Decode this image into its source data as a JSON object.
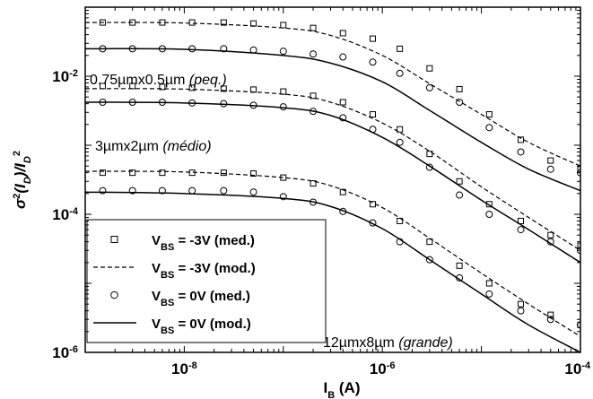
{
  "chart_data": {
    "type": "scatter",
    "xlabel": "I_B (A)",
    "ylabel": "σ²(I_D)/I_D²",
    "xscale": "log",
    "yscale": "log",
    "xlim": [
      1e-09,
      0.0001
    ],
    "ylim": [
      1e-06,
      0.1
    ],
    "x_ticks": [
      {
        "value": 1e-08,
        "base": "10",
        "exp": "-8"
      },
      {
        "value": 1e-06,
        "base": "10",
        "exp": "-6"
      },
      {
        "value": 0.0001,
        "base": "10",
        "exp": "-4"
      }
    ],
    "y_ticks": [
      {
        "value": 1e-06,
        "base": "10",
        "exp": "-6"
      },
      {
        "value": 0.0001,
        "base": "10",
        "exp": "-4"
      },
      {
        "value": 0.01,
        "base": "10",
        "exp": "-2"
      }
    ],
    "grid": false,
    "legend_position": "bottom-left",
    "legend": [
      {
        "marker": "square",
        "style": "marker",
        "label": "V_BS = -3V (med.)"
      },
      {
        "marker": "none",
        "style": "dashed",
        "label": "V_BS = -3V (mod.)"
      },
      {
        "marker": "circle",
        "style": "marker",
        "label": "V_BS = 0V (med.)"
      },
      {
        "marker": "none",
        "style": "solid",
        "label": "V_BS = 0V (mod.)"
      }
    ],
    "annotations": [
      {
        "text": "0.75µmx0.5µm",
        "italic": " (peq.)",
        "group": "small"
      },
      {
        "text": "3µmx2µm",
        "italic": " (médio)",
        "group": "medium"
      },
      {
        "text": "12µmx8µm",
        "italic": " (grande)",
        "group": "large"
      }
    ],
    "series": [
      {
        "group": "small",
        "style": "dashed",
        "x": [
          1e-09,
          1e-08,
          1e-07,
          3e-07,
          1e-06,
          3e-06,
          1e-05,
          3e-05,
          0.0001
        ],
        "y": [
          0.06,
          0.059,
          0.05,
          0.039,
          0.02,
          0.0078,
          0.0028,
          0.0011,
          0.0005
        ]
      },
      {
        "group": "small",
        "style": "solid",
        "x": [
          1e-09,
          1e-08,
          1e-07,
          3e-07,
          1e-06,
          3e-06,
          1e-05,
          3e-05,
          0.0001
        ],
        "y": [
          0.025,
          0.0245,
          0.02,
          0.0155,
          0.0083,
          0.0032,
          0.0011,
          0.00045,
          0.00022
        ]
      },
      {
        "group": "small",
        "style": "square",
        "x": [
          1.5e-09,
          3e-09,
          6e-09,
          1.2e-08,
          2.5e-08,
          5e-08,
          1e-07,
          2e-07,
          4e-07,
          8e-07,
          1.5e-06,
          3e-06,
          6e-06,
          1.2e-05,
          2.5e-05,
          5e-05,
          0.0001
        ],
        "y": [
          0.06,
          0.06,
          0.06,
          0.06,
          0.06,
          0.058,
          0.055,
          0.05,
          0.042,
          0.035,
          0.025,
          0.013,
          0.0065,
          0.0028,
          0.0012,
          0.0006,
          0.00045
        ]
      },
      {
        "group": "small",
        "style": "circle",
        "x": [
          1.5e-09,
          3e-09,
          6e-09,
          1.2e-08,
          2.5e-08,
          5e-08,
          1e-07,
          2e-07,
          4e-07,
          8e-07,
          1.5e-06,
          3e-06,
          6e-06,
          1.2e-05,
          2.5e-05,
          5e-05,
          0.0001
        ],
        "y": [
          0.025,
          0.025,
          0.025,
          0.025,
          0.025,
          0.024,
          0.023,
          0.021,
          0.019,
          0.016,
          0.011,
          0.0068,
          0.0042,
          0.0018,
          0.0008,
          0.00045,
          0.0004
        ]
      },
      {
        "group": "medium",
        "style": "dashed",
        "x": [
          1e-09,
          1e-08,
          1e-07,
          3e-07,
          1e-06,
          3e-06,
          1e-05,
          3e-05,
          0.0001
        ],
        "y": [
          0.0066,
          0.0065,
          0.0055,
          0.0042,
          0.0021,
          0.00082,
          0.00025,
          9e-05,
          3e-05
        ]
      },
      {
        "group": "medium",
        "style": "solid",
        "x": [
          1e-09,
          1e-08,
          1e-07,
          3e-07,
          1e-06,
          3e-06,
          1e-05,
          3e-05,
          0.0001
        ],
        "y": [
          0.0042,
          0.0041,
          0.0035,
          0.0027,
          0.0013,
          0.0005,
          0.00016,
          6e-05,
          2e-05
        ]
      },
      {
        "group": "medium",
        "style": "square",
        "x": [
          1.5e-09,
          3e-09,
          6e-09,
          1.2e-08,
          2.5e-08,
          5e-08,
          1e-07,
          2e-07,
          4e-07,
          8e-07,
          1.5e-06,
          3e-06,
          6e-06,
          1.2e-05,
          2.5e-05,
          5e-05,
          0.0001
        ],
        "y": [
          0.0072,
          0.0072,
          0.007,
          0.0068,
          0.0066,
          0.0064,
          0.006,
          0.0052,
          0.0042,
          0.0028,
          0.0017,
          0.00075,
          0.0003,
          0.00014,
          8e-05,
          5e-05,
          3.5e-05
        ]
      },
      {
        "group": "medium",
        "style": "circle",
        "x": [
          1.5e-09,
          3e-09,
          6e-09,
          1.2e-08,
          2.5e-08,
          5e-08,
          1e-07,
          2e-07,
          4e-07,
          8e-07,
          1.5e-06,
          3e-06,
          6e-06,
          1.2e-05,
          2.5e-05,
          5e-05,
          0.0001
        ],
        "y": [
          0.0042,
          0.0042,
          0.0042,
          0.0041,
          0.004,
          0.0038,
          0.0036,
          0.0031,
          0.0025,
          0.0017,
          0.0011,
          0.00048,
          0.00019,
          0.0001,
          6e-05,
          4e-05,
          3e-05
        ]
      },
      {
        "group": "large",
        "style": "dashed",
        "x": [
          1e-09,
          1e-08,
          1e-07,
          3e-07,
          1e-06,
          3e-06,
          1e-05,
          3e-05,
          0.0001
        ],
        "y": [
          0.00042,
          0.00041,
          0.00034,
          0.00026,
          0.000125,
          4.5e-05,
          1.4e-05,
          5e-06,
          1.7e-06
        ]
      },
      {
        "group": "large",
        "style": "solid",
        "x": [
          1e-09,
          1e-08,
          1e-07,
          3e-07,
          1e-06,
          3e-06,
          1e-05,
          3e-05,
          0.0001
        ],
        "y": [
          0.00021,
          0.0002,
          0.00017,
          0.00013,
          6.2e-05,
          2.2e-05,
          7e-06,
          2.5e-06,
          1e-06
        ]
      },
      {
        "group": "large",
        "style": "square",
        "x": [
          1.5e-09,
          3e-09,
          6e-09,
          1.2e-08,
          2.5e-08,
          5e-08,
          1e-07,
          2e-07,
          4e-07,
          8e-07,
          1.5e-06,
          3e-06,
          6e-06,
          1.2e-05,
          2.5e-05,
          5e-05,
          0.0001
        ],
        "y": [
          0.0004,
          0.0004,
          0.0004,
          0.0004,
          0.0004,
          0.00039,
          0.00034,
          0.00028,
          0.00021,
          0.00014,
          8e-05,
          4e-05,
          1.8e-05,
          1e-05,
          5e-06,
          3.5e-06,
          2.5e-06
        ]
      },
      {
        "group": "large",
        "style": "circle",
        "x": [
          1.5e-09,
          3e-09,
          6e-09,
          1.2e-08,
          2.5e-08,
          5e-08,
          1e-07,
          2e-07,
          4e-07,
          8e-07,
          1.5e-06,
          3e-06,
          6e-06,
          1.2e-05,
          2.5e-05,
          5e-05,
          0.0001
        ],
        "y": [
          0.00022,
          0.00022,
          0.00022,
          0.00022,
          0.00022,
          0.00021,
          0.00018,
          0.00015,
          0.00011,
          7.5e-05,
          4e-05,
          2.2e-05,
          1.2e-05,
          7e-06,
          4e-06,
          3e-06,
          2.5e-06
        ]
      }
    ]
  }
}
